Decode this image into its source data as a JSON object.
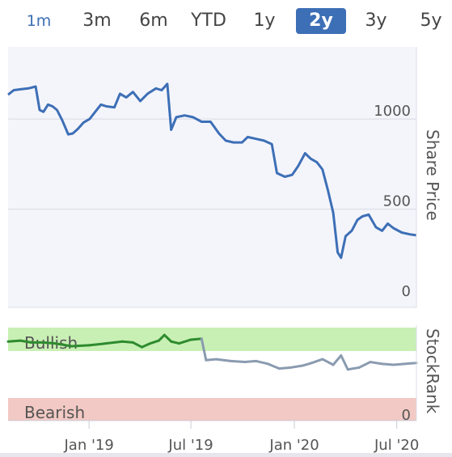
{
  "range_tabs": [
    "1m",
    "3m",
    "6m",
    "YTD",
    "1y",
    "2y",
    "3y",
    "5y"
  ],
  "active_tab": "2y",
  "colors": {
    "price_line": "#3d6fb6",
    "stockrank_line": "#8a9bb0",
    "stockrank_bullish_line": "#2e8b2e",
    "bullish_band": "#c8f0b4",
    "bearish_band": "#f2c9c4",
    "plot_bg": "#f4f5fb",
    "active_tab": "#3d6fb6"
  },
  "chart_data": [
    {
      "type": "line",
      "ylabel": "Share Price",
      "ylim": [
        0,
        1350
      ],
      "yticks": [
        "0",
        "500",
        "1000"
      ],
      "grid": true,
      "series": [
        {
          "values": [
            [
              "2018-08-10",
              1135
            ],
            [
              "2018-08-20",
              1160
            ],
            [
              "2018-09-01",
              1165
            ],
            [
              "2018-09-15",
              1170
            ],
            [
              "2018-09-28",
              1180
            ],
            [
              "2018-10-05",
              1050
            ],
            [
              "2018-10-12",
              1040
            ],
            [
              "2018-10-20",
              1080
            ],
            [
              "2018-10-28",
              1070
            ],
            [
              "2018-11-05",
              1050
            ],
            [
              "2018-11-14",
              995
            ],
            [
              "2018-11-25",
              915
            ],
            [
              "2018-12-03",
              920
            ],
            [
              "2018-12-12",
              945
            ],
            [
              "2018-12-22",
              980
            ],
            [
              "2019-01-02",
              1000
            ],
            [
              "2019-01-12",
              1040
            ],
            [
              "2019-01-22",
              1080
            ],
            [
              "2019-02-01",
              1070
            ],
            [
              "2019-02-15",
              1065
            ],
            [
              "2019-02-25",
              1140
            ],
            [
              "2019-03-08",
              1120
            ],
            [
              "2019-03-20",
              1150
            ],
            [
              "2019-04-02",
              1100
            ],
            [
              "2019-04-15",
              1140
            ],
            [
              "2019-04-30",
              1170
            ],
            [
              "2019-05-10",
              1160
            ],
            [
              "2019-05-20",
              1195
            ],
            [
              "2019-05-27",
              940
            ],
            [
              "2019-06-05",
              1010
            ],
            [
              "2019-06-20",
              1020
            ],
            [
              "2019-07-05",
              1010
            ],
            [
              "2019-07-20",
              985
            ],
            [
              "2019-08-05",
              985
            ],
            [
              "2019-08-20",
              920
            ],
            [
              "2019-09-01",
              880
            ],
            [
              "2019-09-15",
              870
            ],
            [
              "2019-09-30",
              870
            ],
            [
              "2019-10-10",
              900
            ],
            [
              "2019-10-25",
              890
            ],
            [
              "2019-11-08",
              880
            ],
            [
              "2019-11-22",
              860
            ],
            [
              "2019-12-01",
              700
            ],
            [
              "2019-12-15",
              680
            ],
            [
              "2019-12-28",
              690
            ],
            [
              "2020-01-08",
              740
            ],
            [
              "2020-01-20",
              810
            ],
            [
              "2020-01-30",
              780
            ],
            [
              "2020-02-10",
              760
            ],
            [
              "2020-02-20",
              720
            ],
            [
              "2020-03-01",
              600
            ],
            [
              "2020-03-10",
              480
            ],
            [
              "2020-03-18",
              260
            ],
            [
              "2020-03-24",
              230
            ],
            [
              "2020-04-01",
              350
            ],
            [
              "2020-04-12",
              380
            ],
            [
              "2020-04-22",
              440
            ],
            [
              "2020-05-01",
              460
            ],
            [
              "2020-05-12",
              470
            ],
            [
              "2020-05-25",
              400
            ],
            [
              "2020-06-05",
              380
            ],
            [
              "2020-06-15",
              420
            ],
            [
              "2020-06-25",
              395
            ],
            [
              "2020-07-10",
              370
            ],
            [
              "2020-07-25",
              360
            ],
            [
              "2020-08-05",
              355
            ]
          ]
        }
      ]
    },
    {
      "type": "line",
      "ylabel": "StockRank",
      "yticks": [
        "0"
      ],
      "bands": [
        {
          "label": "Bullish",
          "from": 80,
          "to": 100
        },
        {
          "label": "Bearish",
          "from": 0,
          "to": 20
        }
      ],
      "ylim": [
        0,
        100
      ],
      "series": [
        {
          "values": [
            [
              "2018-08-10",
              85
            ],
            [
              "2018-09-01",
              86
            ],
            [
              "2018-09-20",
              84
            ],
            [
              "2018-10-10",
              84
            ],
            [
              "2018-11-01",
              83
            ],
            [
              "2018-12-01",
              80
            ],
            [
              "2019-01-01",
              81
            ],
            [
              "2019-02-01",
              83
            ],
            [
              "2019-03-01",
              85
            ],
            [
              "2019-03-20",
              84
            ],
            [
              "2019-04-05",
              79
            ],
            [
              "2019-04-20",
              83
            ],
            [
              "2019-05-05",
              86
            ],
            [
              "2019-05-15",
              92
            ],
            [
              "2019-05-27",
              85
            ],
            [
              "2019-06-10",
              83
            ],
            [
              "2019-07-01",
              87
            ],
            [
              "2019-07-20",
              88
            ],
            [
              "2019-07-28",
              65
            ],
            [
              "2019-08-15",
              66
            ],
            [
              "2019-09-10",
              64
            ],
            [
              "2019-10-05",
              63
            ],
            [
              "2019-10-25",
              64
            ],
            [
              "2019-11-15",
              61
            ],
            [
              "2019-12-05",
              56
            ],
            [
              "2019-12-25",
              57
            ],
            [
              "2020-01-15",
              59
            ],
            [
              "2020-02-01",
              62
            ],
            [
              "2020-02-20",
              66
            ],
            [
              "2020-03-10",
              60
            ],
            [
              "2020-03-24",
              70
            ],
            [
              "2020-04-05",
              55
            ],
            [
              "2020-04-25",
              57
            ],
            [
              "2020-05-15",
              63
            ],
            [
              "2020-06-05",
              61
            ],
            [
              "2020-06-25",
              60
            ],
            [
              "2020-07-15",
              61
            ],
            [
              "2020-08-05",
              62
            ]
          ]
        }
      ]
    }
  ],
  "xaxis": {
    "ticks": [
      {
        "label": "Jan '19",
        "date": "2019-01-01"
      },
      {
        "label": "Jul '19",
        "date": "2019-07-01"
      },
      {
        "label": "Jan '20",
        "date": "2020-01-01"
      },
      {
        "label": "Jul '20",
        "date": "2020-07-01"
      }
    ]
  }
}
